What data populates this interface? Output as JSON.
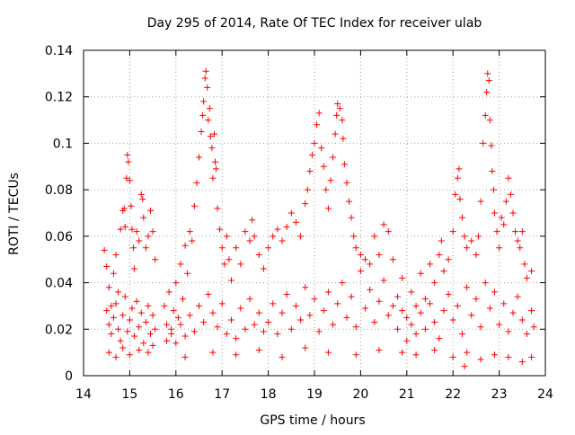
{
  "chart_data": {
    "type": "scatter",
    "title": "Day 295 of 2014, Rate Of TEC Index for receiver ulab",
    "xlabel": "GPS time / hours",
    "ylabel": "ROTI / TECUs",
    "xlim": [
      14,
      24
    ],
    "ylim": [
      0,
      0.14
    ],
    "x_ticks": [
      14,
      15,
      16,
      17,
      18,
      19,
      20,
      21,
      22,
      23,
      24
    ],
    "y_ticks": [
      0,
      0.02,
      0.04,
      0.06,
      0.08,
      0.1,
      0.12,
      0.14
    ],
    "x_tick_labels": [
      "14",
      "15",
      "16",
      "17",
      "18",
      "19",
      "20",
      "21",
      "22",
      "23",
      "24"
    ],
    "y_tick_labels": [
      "0",
      "0.02",
      "0.04",
      "0.06",
      "0.08",
      "0.1",
      "0.12",
      "0.14"
    ],
    "grid": true,
    "marker": "+",
    "color": "#ff0000",
    "series": [
      {
        "name": "ROTI",
        "points": [
          [
            14.45,
            0.054
          ],
          [
            14.5,
            0.047
          ],
          [
            14.55,
            0.038
          ],
          [
            14.6,
            0.03
          ],
          [
            14.65,
            0.044
          ],
          [
            14.7,
            0.052
          ],
          [
            14.75,
            0.036
          ],
          [
            14.8,
            0.063
          ],
          [
            14.85,
            0.071
          ],
          [
            14.88,
            0.072
          ],
          [
            14.9,
            0.064
          ],
          [
            14.93,
            0.085
          ],
          [
            14.95,
            0.095
          ],
          [
            14.97,
            0.092
          ],
          [
            15.0,
            0.084
          ],
          [
            15.03,
            0.073
          ],
          [
            15.05,
            0.063
          ],
          [
            15.08,
            0.055
          ],
          [
            15.1,
            0.046
          ],
          [
            15.15,
            0.062
          ],
          [
            15.2,
            0.058
          ],
          [
            15.25,
            0.078
          ],
          [
            15.28,
            0.076
          ],
          [
            15.3,
            0.068
          ],
          [
            15.35,
            0.055
          ],
          [
            15.4,
            0.06
          ],
          [
            15.45,
            0.071
          ],
          [
            15.5,
            0.062
          ],
          [
            15.55,
            0.05
          ],
          [
            14.5,
            0.028
          ],
          [
            14.55,
            0.022
          ],
          [
            14.6,
            0.018
          ],
          [
            14.65,
            0.025
          ],
          [
            14.7,
            0.031
          ],
          [
            14.75,
            0.02
          ],
          [
            14.8,
            0.015
          ],
          [
            14.85,
            0.026
          ],
          [
            14.9,
            0.034
          ],
          [
            14.95,
            0.019
          ],
          [
            15.0,
            0.024
          ],
          [
            15.05,
            0.029
          ],
          [
            15.1,
            0.017
          ],
          [
            15.15,
            0.032
          ],
          [
            15.2,
            0.021
          ],
          [
            15.25,
            0.027
          ],
          [
            15.3,
            0.014
          ],
          [
            15.35,
            0.023
          ],
          [
            15.4,
            0.03
          ],
          [
            15.45,
            0.018
          ],
          [
            15.5,
            0.026
          ],
          [
            15.55,
            0.02
          ],
          [
            14.55,
            0.01
          ],
          [
            14.7,
            0.008
          ],
          [
            14.85,
            0.012
          ],
          [
            15.0,
            0.009
          ],
          [
            15.2,
            0.011
          ],
          [
            15.4,
            0.01
          ],
          [
            15.5,
            0.013
          ],
          [
            15.75,
            0.03
          ],
          [
            15.8,
            0.022
          ],
          [
            15.85,
            0.036
          ],
          [
            15.9,
            0.018
          ],
          [
            15.95,
            0.028
          ],
          [
            16.0,
            0.04
          ],
          [
            16.05,
            0.025
          ],
          [
            16.1,
            0.048
          ],
          [
            16.15,
            0.033
          ],
          [
            16.2,
            0.056
          ],
          [
            16.25,
            0.044
          ],
          [
            16.3,
            0.062
          ],
          [
            16.35,
            0.058
          ],
          [
            16.4,
            0.073
          ],
          [
            16.45,
            0.083
          ],
          [
            16.5,
            0.094
          ],
          [
            16.55,
            0.105
          ],
          [
            16.58,
            0.112
          ],
          [
            16.6,
            0.118
          ],
          [
            16.63,
            0.128
          ],
          [
            16.65,
            0.131
          ],
          [
            16.68,
            0.124
          ],
          [
            16.7,
            0.11
          ],
          [
            16.73,
            0.115
          ],
          [
            16.75,
            0.103
          ],
          [
            16.78,
            0.098
          ],
          [
            16.8,
            0.085
          ],
          [
            16.83,
            0.104
          ],
          [
            16.85,
            0.092
          ],
          [
            16.87,
            0.089
          ],
          [
            16.9,
            0.072
          ],
          [
            16.95,
            0.063
          ],
          [
            17.0,
            0.055
          ],
          [
            17.05,
            0.048
          ],
          [
            17.1,
            0.06
          ],
          [
            17.15,
            0.05
          ],
          [
            15.8,
            0.015
          ],
          [
            15.9,
            0.02
          ],
          [
            16.0,
            0.014
          ],
          [
            16.1,
            0.022
          ],
          [
            16.2,
            0.017
          ],
          [
            16.3,
            0.026
          ],
          [
            16.4,
            0.019
          ],
          [
            16.5,
            0.03
          ],
          [
            16.6,
            0.023
          ],
          [
            16.7,
            0.035
          ],
          [
            16.8,
            0.027
          ],
          [
            16.9,
            0.021
          ],
          [
            17.0,
            0.031
          ],
          [
            17.1,
            0.018
          ],
          [
            17.2,
            0.024
          ],
          [
            17.3,
            0.016
          ],
          [
            17.4,
            0.029
          ],
          [
            17.5,
            0.02
          ],
          [
            17.6,
            0.033
          ],
          [
            17.7,
            0.022
          ],
          [
            17.8,
            0.027
          ],
          [
            17.9,
            0.019
          ],
          [
            17.2,
            0.041
          ],
          [
            17.3,
            0.055
          ],
          [
            17.4,
            0.048
          ],
          [
            17.5,
            0.062
          ],
          [
            17.6,
            0.058
          ],
          [
            17.65,
            0.067
          ],
          [
            17.7,
            0.06
          ],
          [
            17.8,
            0.052
          ],
          [
            17.9,
            0.046
          ],
          [
            18.0,
            0.055
          ],
          [
            18.1,
            0.06
          ],
          [
            18.2,
            0.063
          ],
          [
            18.3,
            0.058
          ],
          [
            18.4,
            0.064
          ],
          [
            18.5,
            0.07
          ],
          [
            18.6,
            0.066
          ],
          [
            18.7,
            0.06
          ],
          [
            18.8,
            0.074
          ],
          [
            18.85,
            0.08
          ],
          [
            18.9,
            0.088
          ],
          [
            18.95,
            0.095
          ],
          [
            19.0,
            0.1
          ],
          [
            19.05,
            0.108
          ],
          [
            19.1,
            0.113
          ],
          [
            19.15,
            0.098
          ],
          [
            19.2,
            0.09
          ],
          [
            19.25,
            0.08
          ],
          [
            19.3,
            0.072
          ],
          [
            19.35,
            0.084
          ],
          [
            19.4,
            0.094
          ],
          [
            19.45,
            0.104
          ],
          [
            19.48,
            0.112
          ],
          [
            19.5,
            0.117
          ],
          [
            19.55,
            0.115
          ],
          [
            19.6,
            0.11
          ],
          [
            19.62,
            0.102
          ],
          [
            19.65,
            0.091
          ],
          [
            19.7,
            0.083
          ],
          [
            19.75,
            0.075
          ],
          [
            19.8,
            0.068
          ],
          [
            19.85,
            0.06
          ],
          [
            19.9,
            0.055
          ],
          [
            20.0,
            0.052
          ],
          [
            20.1,
            0.05
          ],
          [
            20.2,
            0.048
          ],
          [
            20.3,
            0.06
          ],
          [
            20.4,
            0.052
          ],
          [
            20.5,
            0.065
          ],
          [
            20.6,
            0.062
          ],
          [
            20.7,
            0.05
          ],
          [
            18.0,
            0.023
          ],
          [
            18.1,
            0.031
          ],
          [
            18.2,
            0.018
          ],
          [
            18.3,
            0.027
          ],
          [
            18.4,
            0.035
          ],
          [
            18.5,
            0.02
          ],
          [
            18.6,
            0.03
          ],
          [
            18.7,
            0.024
          ],
          [
            18.8,
            0.038
          ],
          [
            18.9,
            0.026
          ],
          [
            19.0,
            0.033
          ],
          [
            19.1,
            0.019
          ],
          [
            19.2,
            0.028
          ],
          [
            19.3,
            0.036
          ],
          [
            19.4,
            0.022
          ],
          [
            19.5,
            0.031
          ],
          [
            19.6,
            0.04
          ],
          [
            19.7,
            0.025
          ],
          [
            19.8,
            0.034
          ],
          [
            19.9,
            0.021
          ],
          [
            20.0,
            0.045
          ],
          [
            20.1,
            0.029
          ],
          [
            20.2,
            0.037
          ],
          [
            20.3,
            0.023
          ],
          [
            20.4,
            0.032
          ],
          [
            20.5,
            0.041
          ],
          [
            20.6,
            0.026
          ],
          [
            20.7,
            0.03
          ],
          [
            20.8,
            0.02
          ],
          [
            20.9,
            0.028
          ],
          [
            16.2,
            0.008
          ],
          [
            16.8,
            0.01
          ],
          [
            17.3,
            0.009
          ],
          [
            17.8,
            0.011
          ],
          [
            18.3,
            0.008
          ],
          [
            18.8,
            0.012
          ],
          [
            19.3,
            0.01
          ],
          [
            19.9,
            0.009
          ],
          [
            20.4,
            0.011
          ],
          [
            20.9,
            0.01
          ],
          [
            20.8,
            0.034
          ],
          [
            20.9,
            0.042
          ],
          [
            21.0,
            0.025
          ],
          [
            21.1,
            0.036
          ],
          [
            21.2,
            0.03
          ],
          [
            21.3,
            0.044
          ],
          [
            21.4,
            0.033
          ],
          [
            21.5,
            0.048
          ],
          [
            21.6,
            0.04
          ],
          [
            21.7,
            0.052
          ],
          [
            21.75,
            0.058
          ],
          [
            21.8,
            0.045
          ],
          [
            21.9,
            0.05
          ],
          [
            22.0,
            0.062
          ],
          [
            22.05,
            0.078
          ],
          [
            22.1,
            0.085
          ],
          [
            22.13,
            0.089
          ],
          [
            22.15,
            0.076
          ],
          [
            22.2,
            0.068
          ],
          [
            22.25,
            0.06
          ],
          [
            22.3,
            0.055
          ],
          [
            22.4,
            0.058
          ],
          [
            22.5,
            0.052
          ],
          [
            22.55,
            0.06
          ],
          [
            22.6,
            0.075
          ],
          [
            22.65,
            0.1
          ],
          [
            22.7,
            0.112
          ],
          [
            22.73,
            0.122
          ],
          [
            22.75,
            0.13
          ],
          [
            22.78,
            0.127
          ],
          [
            22.8,
            0.11
          ],
          [
            22.83,
            0.099
          ],
          [
            22.85,
            0.088
          ],
          [
            22.88,
            0.08
          ],
          [
            22.9,
            0.07
          ],
          [
            22.95,
            0.062
          ],
          [
            23.0,
            0.055
          ],
          [
            23.05,
            0.068
          ],
          [
            23.1,
            0.065
          ],
          [
            23.15,
            0.075
          ],
          [
            23.2,
            0.085
          ],
          [
            23.25,
            0.078
          ],
          [
            23.3,
            0.07
          ],
          [
            23.35,
            0.062
          ],
          [
            23.4,
            0.058
          ],
          [
            23.45,
            0.055
          ],
          [
            23.5,
            0.062
          ],
          [
            23.55,
            0.048
          ],
          [
            23.6,
            0.042
          ],
          [
            23.7,
            0.045
          ],
          [
            21.0,
            0.015
          ],
          [
            21.1,
            0.022
          ],
          [
            21.2,
            0.018
          ],
          [
            21.3,
            0.027
          ],
          [
            21.4,
            0.02
          ],
          [
            21.5,
            0.031
          ],
          [
            21.6,
            0.023
          ],
          [
            21.7,
            0.016
          ],
          [
            21.8,
            0.028
          ],
          [
            21.9,
            0.035
          ],
          [
            22.0,
            0.024
          ],
          [
            22.1,
            0.03
          ],
          [
            22.2,
            0.018
          ],
          [
            22.3,
            0.038
          ],
          [
            22.4,
            0.026
          ],
          [
            22.5,
            0.033
          ],
          [
            22.6,
            0.021
          ],
          [
            22.7,
            0.04
          ],
          [
            22.8,
            0.029
          ],
          [
            22.9,
            0.036
          ],
          [
            23.0,
            0.022
          ],
          [
            23.1,
            0.031
          ],
          [
            23.2,
            0.019
          ],
          [
            23.3,
            0.027
          ],
          [
            23.4,
            0.034
          ],
          [
            23.5,
            0.024
          ],
          [
            23.6,
            0.018
          ],
          [
            23.7,
            0.028
          ],
          [
            23.75,
            0.021
          ],
          [
            21.2,
            0.009
          ],
          [
            21.6,
            0.011
          ],
          [
            22.0,
            0.008
          ],
          [
            22.3,
            0.01
          ],
          [
            22.6,
            0.007
          ],
          [
            22.9,
            0.009
          ],
          [
            23.2,
            0.008
          ],
          [
            23.5,
            0.006
          ],
          [
            23.7,
            0.008
          ],
          [
            22.25,
            0.004
          ]
        ]
      }
    ]
  }
}
